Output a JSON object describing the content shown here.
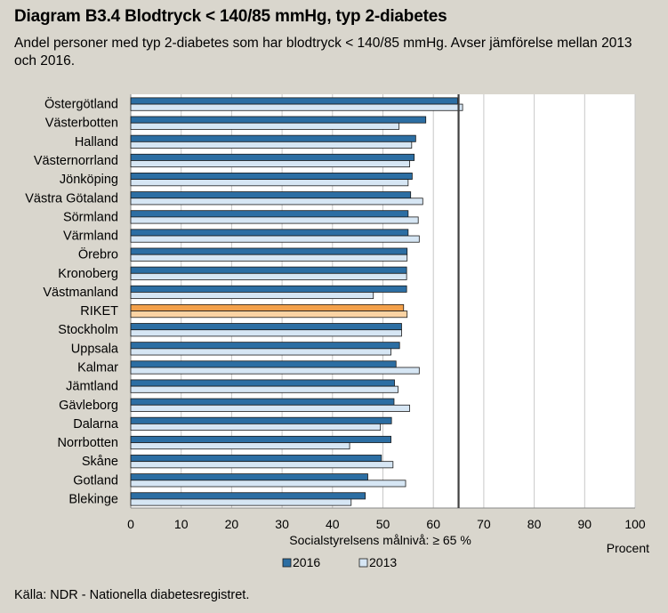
{
  "header": {
    "title": "Diagram B3.4 Blodtryck < 140/85 mmHg, typ 2-diabetes",
    "subtitle": "Andel personer med typ 2-diabetes som har blodtryck < 140/85 mmHg. Avser jämförelse mellan 2013 och 2016."
  },
  "footer": {
    "source": "Källa: NDR - Nationella diabetesregistret."
  },
  "colors": {
    "series_2016": "#2c6ea3",
    "series_2013": "#d6e6f4",
    "riket_2016": "#f3a04a",
    "riket_2013": "#fbd3a3",
    "target_line": "#404040"
  },
  "chart_data": {
    "type": "bar",
    "orientation": "horizontal",
    "categories": [
      "Östergötland",
      "Västerbotten",
      "Halland",
      "Västernorrland",
      "Jönköping",
      "Västra Götaland",
      "Sörmland",
      "Värmland",
      "Örebro",
      "Kronoberg",
      "Västmanland",
      "RIKET",
      "Stockholm",
      "Uppsala",
      "Kalmar",
      "Jämtland",
      "Gävleborg",
      "Dalarna",
      "Norrbotten",
      "Skåne",
      "Gotland",
      "Blekinge"
    ],
    "highlight_category": "RIKET",
    "series": [
      {
        "name": "2016",
        "values": [
          64.8,
          58.5,
          56.5,
          56.2,
          55.8,
          55.5,
          55.0,
          55.0,
          54.8,
          54.7,
          54.7,
          54.1,
          53.7,
          53.3,
          52.6,
          52.3,
          52.2,
          51.7,
          51.6,
          49.7,
          47.0,
          46.5
        ]
      },
      {
        "name": "2013",
        "values": [
          65.8,
          53.2,
          55.7,
          55.3,
          55.0,
          57.9,
          57.0,
          57.2,
          54.8,
          54.7,
          48.1,
          54.8,
          53.7,
          51.6,
          57.2,
          53.0,
          55.3,
          49.5,
          43.4,
          52.0,
          54.5,
          43.7
        ]
      }
    ],
    "xlim": [
      0,
      100
    ],
    "xticks": [
      0,
      10,
      20,
      30,
      40,
      50,
      60,
      70,
      80,
      90,
      100
    ],
    "xlabel": "Procent",
    "target_value": 65,
    "target_label": "Socialstyrelsens målnivå: ≥ 65 %",
    "grid": true,
    "legend_position": "bottom-center"
  }
}
